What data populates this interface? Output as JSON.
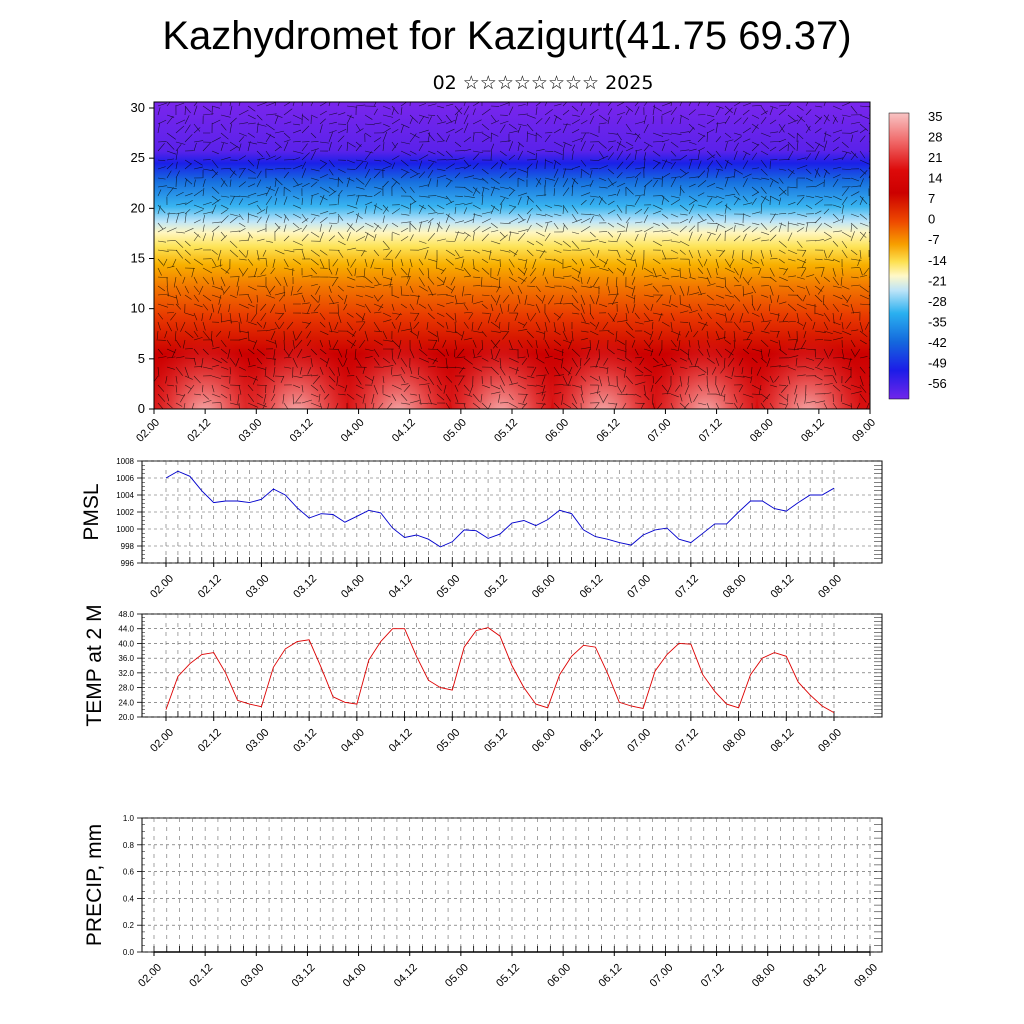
{
  "title": "Kazhydromet for Kazigurt(41.75 69.37)",
  "subtitle": "02 ☆☆☆☆☆☆☆☆ 2025",
  "chart_data": [
    {
      "type": "heatmap",
      "description_axis": "height",
      "yticks": [
        "0",
        "5",
        "10",
        "15",
        "20",
        "25",
        "30"
      ],
      "ylim": [
        0,
        30
      ],
      "xticks": [
        "02.00",
        "02.12",
        "03.00",
        "03.12",
        "04.00",
        "04.12",
        "05.00",
        "05.12",
        "06.00",
        "06.12",
        "07.00",
        "07.12",
        "08.00",
        "08.12",
        "09.00"
      ],
      "colorbar_labels": [
        "35",
        "28",
        "21",
        "14",
        "7",
        "0",
        "-7",
        "-14",
        "-21",
        "-28",
        "-35",
        "-42",
        "-49",
        "-56"
      ],
      "colors": [
        "#f7b5b5",
        "#f06060",
        "#e01010",
        "#cc0000",
        "#e83000",
        "#f07000",
        "#f8a800",
        "#fce050",
        "#fff8b0",
        "#c0e8f8",
        "#40b8f0",
        "#1878e0",
        "#2020f0",
        "#6a20e8"
      ]
    },
    {
      "type": "line",
      "ylabel": "PMSL",
      "ylim": [
        996,
        1008
      ],
      "yticks": [
        "996",
        "998",
        "1000",
        "1002",
        "1004",
        "1006",
        "1008"
      ],
      "xticks": [
        "02.00",
        "02.12",
        "03.00",
        "03.12",
        "04.00",
        "04.12",
        "05.00",
        "05.12",
        "06.00",
        "06.12",
        "07.00",
        "07.12",
        "08.00",
        "08.12",
        "09.00"
      ],
      "color": "#0000cc",
      "values": [
        1006.0,
        1006.8,
        1006.2,
        1004.5,
        1003.1,
        1003.3,
        1003.3,
        1003.1,
        1003.5,
        1004.7,
        1004.0,
        1002.5,
        1001.3,
        1001.8,
        1001.7,
        1000.8,
        1001.5,
        1002.2,
        1001.9,
        1000.1,
        999.0,
        999.3,
        998.8,
        997.9,
        998.5,
        999.9,
        999.8,
        998.9,
        999.4,
        1000.7,
        1001.0,
        1000.4,
        1001.1,
        1002.2,
        1001.8,
        999.9,
        999.1,
        998.8,
        998.4,
        998.1,
        999.3,
        999.9,
        1000.1,
        998.8,
        998.4,
        999.5,
        1000.6,
        1000.6,
        1002.0,
        1003.3,
        1003.3,
        1002.4,
        1002.1,
        1003.1,
        1004.0,
        1004.0,
        1004.8
      ]
    },
    {
      "type": "line",
      "ylabel": "TEMP at 2 M",
      "ylim": [
        20,
        48
      ],
      "yticks": [
        "20.0",
        "24.0",
        "28.0",
        "32.0",
        "36.0",
        "40.0",
        "44.0",
        "48.0"
      ],
      "xticks": [
        "02.00",
        "02.12",
        "03.00",
        "03.12",
        "04.00",
        "04.12",
        "05.00",
        "05.12",
        "06.00",
        "06.12",
        "07.00",
        "07.12",
        "08.00",
        "08.12",
        "09.00"
      ],
      "color": "#dd0000",
      "values": [
        22.0,
        31.0,
        34.5,
        37.0,
        37.5,
        32.0,
        24.5,
        23.5,
        22.8,
        33.5,
        38.5,
        40.5,
        41.0,
        33.5,
        25.5,
        24.0,
        23.5,
        35.5,
        40.5,
        44.0,
        44.0,
        36.5,
        30.0,
        28.0,
        27.3,
        39.0,
        43.5,
        44.3,
        42.0,
        34.0,
        28.0,
        23.5,
        22.5,
        31.5,
        36.5,
        39.5,
        39.0,
        32.0,
        24.0,
        23.0,
        22.3,
        32.5,
        37.0,
        40.0,
        39.8,
        31.5,
        27.0,
        23.5,
        22.5,
        31.5,
        36.0,
        37.5,
        36.5,
        29.5,
        26.0,
        23.0,
        21.2
      ]
    },
    {
      "type": "line",
      "ylabel": "PRECIP, mm",
      "ylim": [
        0,
        1
      ],
      "yticks": [
        "0.0",
        "0.2",
        "0.4",
        "0.6",
        "0.8",
        "1.0"
      ],
      "xticks": [
        "02.00",
        "02.12",
        "03.00",
        "03.12",
        "04.00",
        "04.12",
        "05.00",
        "05.12",
        "06.00",
        "06.12",
        "07.00",
        "07.12",
        "08.00",
        "08.12",
        "09.00"
      ],
      "color": "#000000",
      "values": [
        0,
        0,
        0,
        0,
        0,
        0,
        0,
        0,
        0,
        0,
        0,
        0,
        0,
        0,
        0,
        0,
        0,
        0,
        0,
        0,
        0,
        0,
        0,
        0,
        0,
        0,
        0,
        0,
        0,
        0,
        0,
        0,
        0,
        0,
        0,
        0,
        0,
        0,
        0,
        0,
        0,
        0,
        0,
        0,
        0,
        0,
        0,
        0,
        0,
        0,
        0,
        0,
        0,
        0,
        0,
        0,
        0
      ]
    }
  ]
}
